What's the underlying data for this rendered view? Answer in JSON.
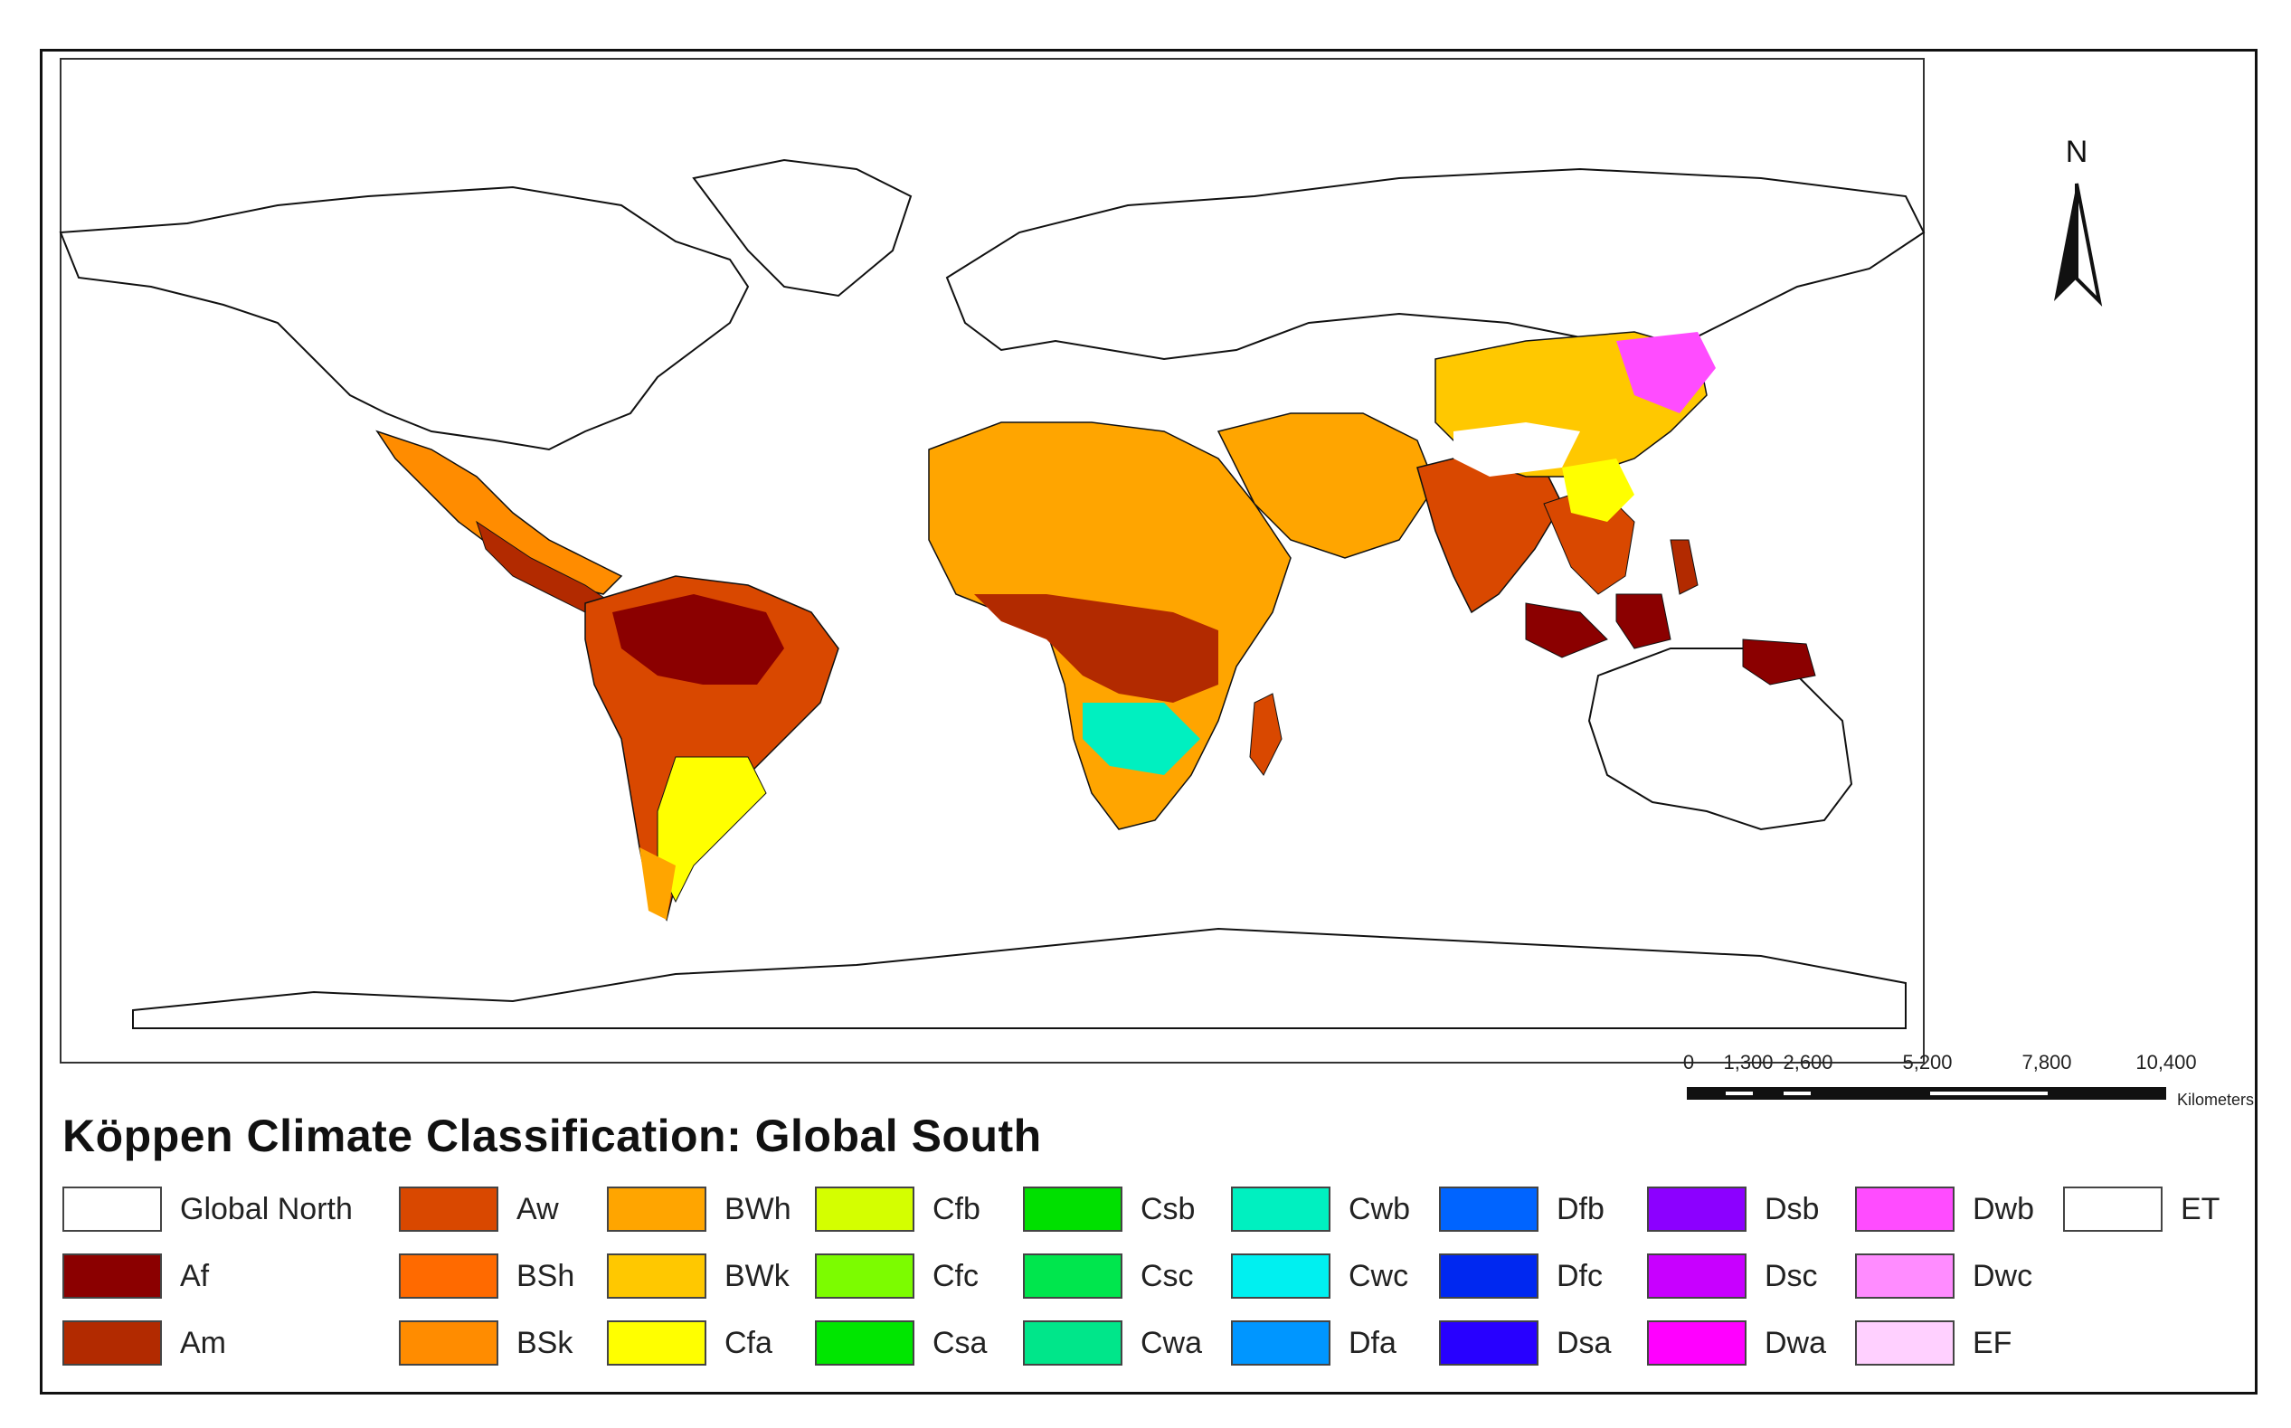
{
  "map": {
    "title": "Köppen Climate Classification: Global South",
    "north_arrow": {
      "label": "N"
    },
    "scale_bar": {
      "ticks": [
        "0",
        "1,300",
        "2,600",
        "5,200",
        "7,800",
        "10,400"
      ],
      "unit": "Kilometers"
    },
    "legend": [
      {
        "label": "Global North",
        "color": "#ffffff"
      },
      {
        "label": "Af",
        "color": "#8b0000"
      },
      {
        "label": "Am",
        "color": "#b22a00"
      },
      {
        "label": "Aw",
        "color": "#d94800"
      },
      {
        "label": "BSh",
        "color": "#ff6a00"
      },
      {
        "label": "BSk",
        "color": "#ff8c00"
      },
      {
        "label": "BWh",
        "color": "#ffa500"
      },
      {
        "label": "BWk",
        "color": "#ffc800"
      },
      {
        "label": "Cfa",
        "color": "#ffff00"
      },
      {
        "label": "Cfb",
        "color": "#d4ff00"
      },
      {
        "label": "Cfc",
        "color": "#7cfc00"
      },
      {
        "label": "Csa",
        "color": "#00e600"
      },
      {
        "label": "Csb",
        "color": "#00e000"
      },
      {
        "label": "Csc",
        "color": "#00e64d"
      },
      {
        "label": "Cwa",
        "color": "#00e68a"
      },
      {
        "label": "Cwb",
        "color": "#00f0c0"
      },
      {
        "label": "Cwc",
        "color": "#00f0f0"
      },
      {
        "label": "Dfa",
        "color": "#0096ff"
      },
      {
        "label": "Dfb",
        "color": "#0064ff"
      },
      {
        "label": "Dfc",
        "color": "#0028f0"
      },
      {
        "label": "Dsa",
        "color": "#2800ff"
      },
      {
        "label": "Dsb",
        "color": "#8c00ff"
      },
      {
        "label": "Dsc",
        "color": "#c800ff"
      },
      {
        "label": "Dwa",
        "color": "#ff00ff"
      },
      {
        "label": "Dwb",
        "color": "#ff4cff"
      },
      {
        "label": "Dwc",
        "color": "#ff8cff"
      },
      {
        "label": "EF",
        "color": "#ffd0ff"
      },
      {
        "label": "ET",
        "color": "#ffffff"
      }
    ]
  }
}
